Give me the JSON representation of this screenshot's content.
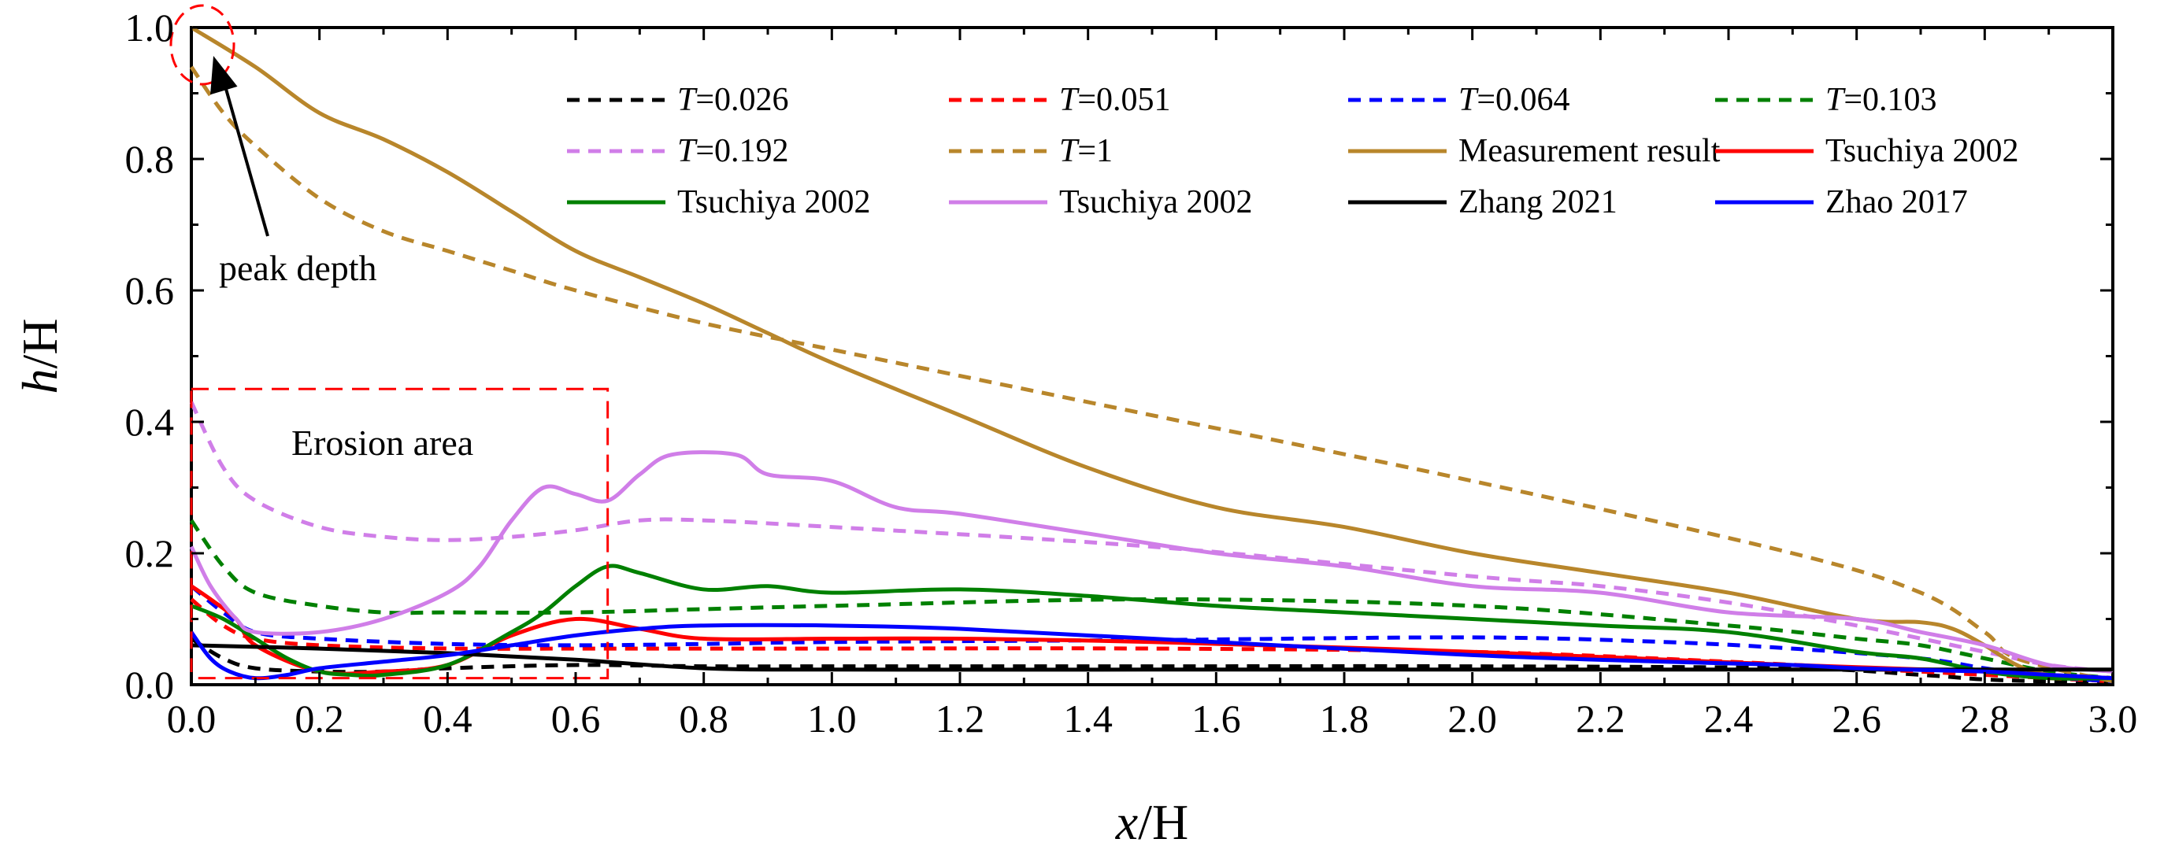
{
  "chart_data": {
    "type": "line",
    "xlabel": {
      "italic": "x",
      "rest": "/H"
    },
    "ylabel": {
      "italic": "h",
      "rest": "/H"
    },
    "xlim": [
      0,
      3.0
    ],
    "ylim": [
      0,
      1.0
    ],
    "xticks": [
      "0.0",
      "0.2",
      "0.4",
      "0.6",
      "0.8",
      "1.0",
      "1.2",
      "1.4",
      "1.6",
      "1.8",
      "2.0",
      "2.2",
      "2.4",
      "2.6",
      "2.8",
      "3.0"
    ],
    "yticks": [
      "0.0",
      "0.2",
      "0.4",
      "0.6",
      "0.8",
      "1.0"
    ],
    "legend_position": "top-right",
    "annotations": {
      "peak": "peak depth",
      "erosion": "Erosion area",
      "erosion_box": {
        "x0": 0,
        "x1": 0.65,
        "y0": 0.01,
        "y1": 0.45
      },
      "peak_point": {
        "x": 0,
        "y": 1.0
      }
    },
    "series": [
      {
        "name": "T=0.026",
        "prefix": "T",
        "suffix": "=0.026",
        "color": "#000000",
        "dash": true,
        "x": [
          0,
          0.05,
          0.1,
          0.2,
          0.3,
          0.4,
          0.6,
          0.8,
          1.0,
          1.5,
          2.0,
          2.5,
          2.7,
          2.8,
          2.9,
          3.0
        ],
        "y": [
          0.07,
          0.04,
          0.025,
          0.02,
          0.02,
          0.025,
          0.03,
          0.028,
          0.028,
          0.028,
          0.028,
          0.025,
          0.015,
          0.008,
          0.005,
          0.003
        ]
      },
      {
        "name": "T=0.051",
        "prefix": "T",
        "suffix": "=0.051",
        "color": "#ff0000",
        "dash": true,
        "x": [
          0,
          0.05,
          0.1,
          0.2,
          0.4,
          0.6,
          0.8,
          1.0,
          1.5,
          2.0,
          2.4,
          2.6,
          2.8,
          2.9,
          3.0
        ],
        "y": [
          0.13,
          0.09,
          0.07,
          0.06,
          0.055,
          0.055,
          0.055,
          0.055,
          0.055,
          0.05,
          0.035,
          0.025,
          0.015,
          0.01,
          0.005
        ]
      },
      {
        "name": "T=0.064",
        "prefix": "T",
        "suffix": "=0.064",
        "color": "#0000ff",
        "dash": true,
        "x": [
          0,
          0.05,
          0.1,
          0.2,
          0.4,
          0.6,
          0.8,
          1.0,
          1.5,
          2.0,
          2.3,
          2.5,
          2.7,
          2.8,
          2.9,
          3.0
        ],
        "y": [
          0.15,
          0.11,
          0.08,
          0.07,
          0.062,
          0.06,
          0.062,
          0.065,
          0.068,
          0.072,
          0.065,
          0.055,
          0.04,
          0.025,
          0.012,
          0.005
        ]
      },
      {
        "name": "T=0.103",
        "prefix": "T",
        "suffix": "=0.103",
        "color": "#008000",
        "dash": true,
        "x": [
          0,
          0.05,
          0.1,
          0.2,
          0.3,
          0.4,
          0.6,
          0.8,
          1.0,
          1.5,
          2.0,
          2.4,
          2.6,
          2.7,
          2.8,
          2.9,
          3.0
        ],
        "y": [
          0.25,
          0.18,
          0.14,
          0.12,
          0.11,
          0.11,
          0.11,
          0.115,
          0.12,
          0.13,
          0.12,
          0.09,
          0.07,
          0.06,
          0.04,
          0.02,
          0.01
        ]
      },
      {
        "name": "T=0.192",
        "prefix": "T",
        "suffix": "=0.192",
        "color": "#d07ee8",
        "dash": true,
        "x": [
          0,
          0.05,
          0.1,
          0.2,
          0.3,
          0.4,
          0.5,
          0.6,
          0.7,
          0.8,
          1.0,
          1.5,
          2.0,
          2.2,
          2.4,
          2.6,
          2.8,
          2.9,
          3.0
        ],
        "y": [
          0.43,
          0.33,
          0.28,
          0.24,
          0.225,
          0.22,
          0.225,
          0.235,
          0.25,
          0.25,
          0.24,
          0.21,
          0.165,
          0.15,
          0.125,
          0.09,
          0.05,
          0.03,
          0.02
        ]
      },
      {
        "name": "T=1",
        "prefix": "T",
        "suffix": "=1",
        "color": "#b8862b",
        "dash": true,
        "x": [
          0,
          0.05,
          0.1,
          0.2,
          0.3,
          0.4,
          0.5,
          0.6,
          0.8,
          1.0,
          1.2,
          1.5,
          2.0,
          2.5,
          2.7,
          2.8,
          2.85,
          3.0
        ],
        "y": [
          0.94,
          0.87,
          0.82,
          0.74,
          0.69,
          0.66,
          0.63,
          0.6,
          0.55,
          0.51,
          0.47,
          0.41,
          0.31,
          0.2,
          0.14,
          0.08,
          0.04,
          0.005
        ]
      },
      {
        "name": "Measurement result",
        "color": "#b8862b",
        "dash": false,
        "x": [
          0,
          0.1,
          0.2,
          0.3,
          0.4,
          0.5,
          0.6,
          0.7,
          0.8,
          0.9,
          1.0,
          1.2,
          1.4,
          1.6,
          1.8,
          2.0,
          2.2,
          2.4,
          2.6,
          2.7,
          2.75,
          2.8,
          2.85,
          2.9,
          3.0
        ],
        "y": [
          1.0,
          0.94,
          0.87,
          0.83,
          0.78,
          0.72,
          0.66,
          0.62,
          0.58,
          0.535,
          0.49,
          0.41,
          0.33,
          0.27,
          0.24,
          0.2,
          0.17,
          0.14,
          0.1,
          0.095,
          0.085,
          0.06,
          0.03,
          0.015,
          0.01
        ]
      },
      {
        "name": "Tsuchiya 2002",
        "color": "#ff0000",
        "dash": false,
        "x": [
          0,
          0.03,
          0.07,
          0.1,
          0.2,
          0.3,
          0.4,
          0.5,
          0.6,
          0.7,
          0.8,
          1.0,
          1.2,
          1.5,
          2.0,
          2.5,
          2.8,
          2.9,
          3.0
        ],
        "y": [
          0.15,
          0.13,
          0.1,
          0.06,
          0.02,
          0.02,
          0.03,
          0.075,
          0.1,
          0.085,
          0.07,
          0.07,
          0.07,
          0.065,
          0.05,
          0.03,
          0.02,
          0.015,
          0.01
        ]
      },
      {
        "name": "Tsuchiya 2002",
        "color": "#008000",
        "dash": false,
        "x": [
          0,
          0.05,
          0.1,
          0.15,
          0.2,
          0.25,
          0.3,
          0.4,
          0.5,
          0.55,
          0.6,
          0.65,
          0.7,
          0.8,
          0.9,
          1.0,
          1.2,
          1.4,
          1.6,
          1.8,
          2.0,
          2.2,
          2.4,
          2.6,
          2.7,
          2.8,
          2.9,
          3.0
        ],
        "y": [
          0.12,
          0.1,
          0.07,
          0.04,
          0.02,
          0.015,
          0.015,
          0.03,
          0.08,
          0.11,
          0.15,
          0.18,
          0.17,
          0.145,
          0.15,
          0.14,
          0.145,
          0.135,
          0.12,
          0.11,
          0.1,
          0.09,
          0.08,
          0.05,
          0.04,
          0.02,
          0.01,
          0.01
        ]
      },
      {
        "name": "Tsuchiya 2002",
        "color": "#d07ee8",
        "dash": false,
        "x": [
          0,
          0.03,
          0.07,
          0.1,
          0.2,
          0.3,
          0.4,
          0.45,
          0.5,
          0.55,
          0.6,
          0.65,
          0.7,
          0.75,
          0.85,
          0.9,
          1.0,
          1.1,
          1.2,
          1.4,
          1.6,
          1.8,
          2.0,
          2.2,
          2.4,
          2.6,
          2.7,
          2.8,
          2.9,
          3.0
        ],
        "y": [
          0.21,
          0.15,
          0.1,
          0.08,
          0.08,
          0.1,
          0.14,
          0.18,
          0.25,
          0.3,
          0.29,
          0.28,
          0.32,
          0.35,
          0.35,
          0.32,
          0.31,
          0.27,
          0.26,
          0.23,
          0.2,
          0.18,
          0.15,
          0.14,
          0.11,
          0.1,
          0.08,
          0.06,
          0.03,
          0.02
        ]
      },
      {
        "name": "Zhang 2021",
        "color": "#000000",
        "dash": false,
        "x": [
          0,
          0.2,
          0.4,
          0.6,
          0.8,
          1.0,
          1.5,
          2.0,
          2.5,
          3.0
        ],
        "y": [
          0.06,
          0.055,
          0.048,
          0.038,
          0.025,
          0.023,
          0.023,
          0.023,
          0.023,
          0.023
        ]
      },
      {
        "name": "Zhao 2017",
        "color": "#0000ff",
        "dash": false,
        "x": [
          0,
          0.03,
          0.06,
          0.1,
          0.15,
          0.2,
          0.3,
          0.4,
          0.5,
          0.6,
          0.7,
          0.8,
          1.0,
          1.2,
          1.5,
          2.0,
          2.3,
          2.5,
          2.6,
          2.8,
          2.9,
          3.0
        ],
        "y": [
          0.08,
          0.04,
          0.02,
          0.01,
          0.015,
          0.025,
          0.035,
          0.045,
          0.06,
          0.075,
          0.085,
          0.09,
          0.09,
          0.085,
          0.07,
          0.045,
          0.035,
          0.03,
          0.025,
          0.02,
          0.015,
          0.01
        ]
      }
    ]
  }
}
